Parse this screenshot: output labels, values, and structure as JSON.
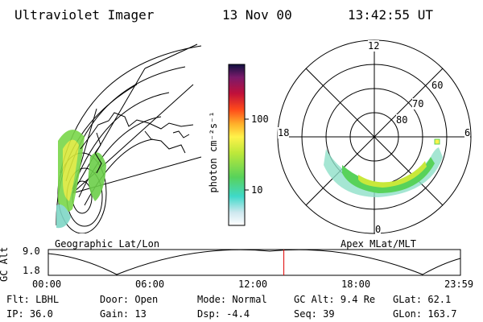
{
  "header": {
    "title": "Ultraviolet Imager",
    "date": "13 Nov 00",
    "time": "13:42:55 UT"
  },
  "colorbar": {
    "unit_label": "photon cm⁻²s⁻¹",
    "ticks": [
      "100",
      "10"
    ]
  },
  "polar_plot": {
    "mlt_labels": [
      "12",
      "18",
      "6",
      "0"
    ],
    "lat_labels": [
      "60",
      "70",
      "80"
    ]
  },
  "panel_labels": {
    "left": "Geographic Lat/Lon",
    "right": "Apex MLat/MLT"
  },
  "altitude_plot": {
    "axis_label": "GC Alt",
    "y_ticks": [
      "9.0",
      "1.8"
    ],
    "x_ticks": [
      "00:00",
      "06:00",
      "12:00",
      "18:00",
      "23:59"
    ],
    "current_time_hours": 13.715
  },
  "info": {
    "row1": [
      {
        "label": "Flt:",
        "value": "LBHL"
      },
      {
        "label": "Door:",
        "value": "Open"
      },
      {
        "label": "Mode:",
        "value": "Normal"
      },
      {
        "label": "GC Alt:",
        "value": "9.4 Re"
      },
      {
        "label": "GLat:",
        "value": "62.1"
      }
    ],
    "row2": [
      {
        "label": "IP:",
        "value": "36.0"
      },
      {
        "label": "Gain:",
        "value": "13"
      },
      {
        "label": "Dsp:",
        "value": "-4.4"
      },
      {
        "label": "Seq:",
        "value": "39"
      },
      {
        "label": "GLon:",
        "value": "163.7"
      }
    ]
  },
  "colors": {
    "marker_line": "#e00000",
    "outline": "#000000"
  }
}
